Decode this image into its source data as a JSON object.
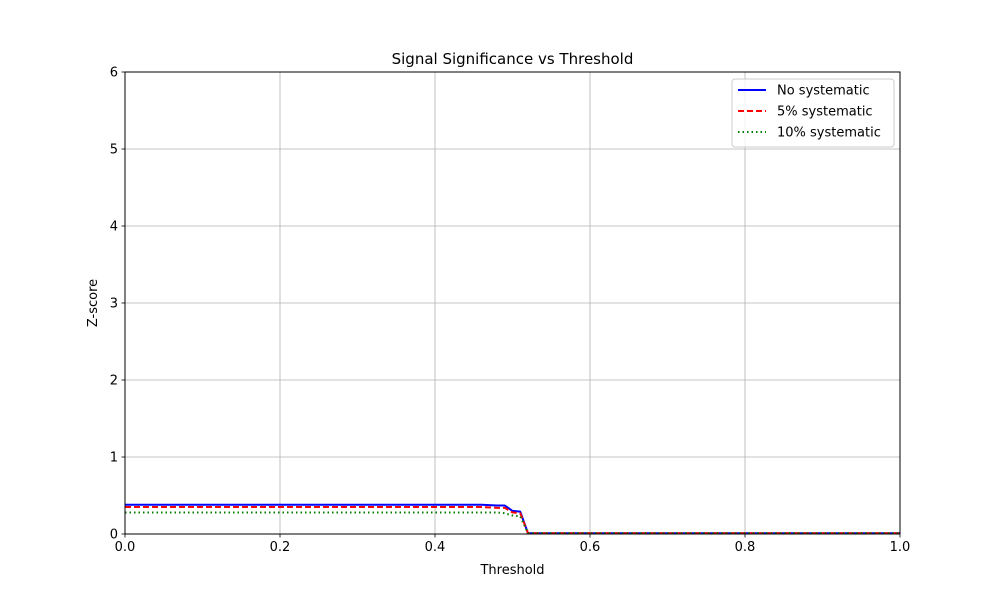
{
  "chart_data": {
    "type": "line",
    "title": "Signal Significance vs Threshold",
    "xlabel": "Threshold",
    "ylabel": "Z-score",
    "xlim": [
      0,
      1
    ],
    "ylim": [
      0,
      6
    ],
    "x_ticks": [
      {
        "value": 0.0,
        "label": "0.0"
      },
      {
        "value": 0.2,
        "label": "0.2"
      },
      {
        "value": 0.4,
        "label": "0.4"
      },
      {
        "value": 0.6,
        "label": "0.6"
      },
      {
        "value": 0.8,
        "label": "0.8"
      },
      {
        "value": 1.0,
        "label": "1.0"
      }
    ],
    "y_ticks": [
      {
        "value": 0,
        "label": "0"
      },
      {
        "value": 1,
        "label": "1"
      },
      {
        "value": 2,
        "label": "2"
      },
      {
        "value": 3,
        "label": "3"
      },
      {
        "value": 4,
        "label": "4"
      },
      {
        "value": 5,
        "label": "5"
      },
      {
        "value": 6,
        "label": "6"
      }
    ],
    "grid": true,
    "legend_position": "top-right",
    "series": [
      {
        "name": "No systematic",
        "color": "#0000ff",
        "style": "solid",
        "x": [
          0.0,
          0.1,
          0.2,
          0.3,
          0.4,
          0.46,
          0.48,
          0.49,
          0.5,
          0.51,
          0.52,
          0.53,
          0.6,
          0.7,
          0.8,
          0.9,
          1.0
        ],
        "y": [
          0.38,
          0.38,
          0.38,
          0.38,
          0.38,
          0.38,
          0.37,
          0.37,
          0.3,
          0.29,
          0.01,
          0.01,
          0.01,
          0.01,
          0.01,
          0.01,
          0.01
        ]
      },
      {
        "name": "5% systematic",
        "color": "#ff0000",
        "style": "dashed",
        "x": [
          0.0,
          0.1,
          0.2,
          0.3,
          0.4,
          0.46,
          0.48,
          0.49,
          0.5,
          0.51,
          0.52,
          0.53,
          0.6,
          0.7,
          0.8,
          0.9,
          1.0
        ],
        "y": [
          0.35,
          0.35,
          0.35,
          0.35,
          0.35,
          0.35,
          0.34,
          0.34,
          0.28,
          0.27,
          0.01,
          0.01,
          0.01,
          0.01,
          0.01,
          0.01,
          0.01
        ]
      },
      {
        "name": "10% systematic",
        "color": "#008000",
        "style": "dotted",
        "x": [
          0.0,
          0.1,
          0.2,
          0.3,
          0.4,
          0.46,
          0.48,
          0.49,
          0.5,
          0.51,
          0.52,
          0.53,
          0.6,
          0.7,
          0.8,
          0.9,
          1.0
        ],
        "y": [
          0.28,
          0.28,
          0.28,
          0.28,
          0.28,
          0.28,
          0.28,
          0.27,
          0.24,
          0.23,
          0.01,
          0.01,
          0.01,
          0.01,
          0.01,
          0.01,
          0.01
        ]
      }
    ]
  }
}
